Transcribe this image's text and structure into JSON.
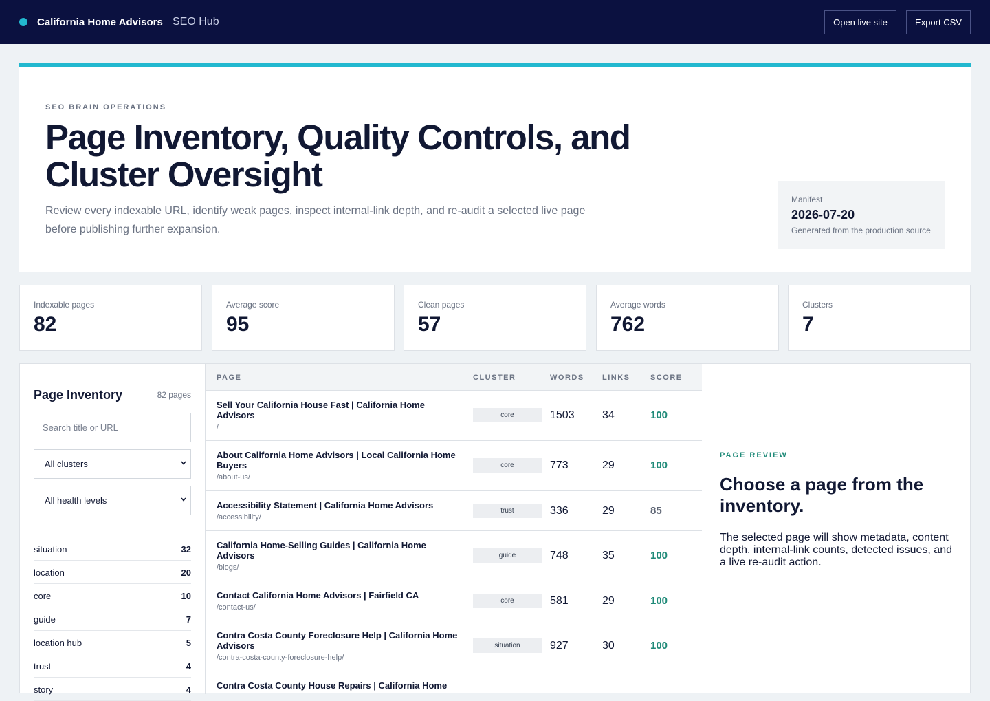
{
  "header": {
    "brand_name": "California Home Advisors",
    "brand_sub": "SEO Hub",
    "open_live_label": "Open live site",
    "export_label": "Export CSV",
    "accent_color": "#22b8cf"
  },
  "hero": {
    "eyebrow": "SEO BRAIN OPERATIONS",
    "title": "Page Inventory, Quality Controls, and Cluster Oversight",
    "description": "Review every indexable URL, identify weak pages, inspect internal-link depth, and re-audit a selected live page before publishing further expansion.",
    "manifest": {
      "label": "Manifest",
      "date": "2026-07-20",
      "note": "Generated from the production source"
    }
  },
  "stats": [
    {
      "label": "Indexable pages",
      "value": "82"
    },
    {
      "label": "Average score",
      "value": "95"
    },
    {
      "label": "Clean pages",
      "value": "57"
    },
    {
      "label": "Average words",
      "value": "762"
    },
    {
      "label": "Clusters",
      "value": "7"
    }
  ],
  "inventory": {
    "title": "Page Inventory",
    "count": "82 pages",
    "search_placeholder": "Search title or URL",
    "cluster_filter": "All clusters",
    "health_filter": "All health levels",
    "clusters": [
      {
        "name": "situation",
        "count": "32"
      },
      {
        "name": "location",
        "count": "20"
      },
      {
        "name": "core",
        "count": "10"
      },
      {
        "name": "guide",
        "count": "7"
      },
      {
        "name": "location hub",
        "count": "5"
      },
      {
        "name": "trust",
        "count": "4"
      },
      {
        "name": "story",
        "count": "4"
      }
    ]
  },
  "table": {
    "columns": {
      "page": "PAGE",
      "cluster": "CLUSTER",
      "words": "WORDS",
      "links": "LINKS",
      "score": "SCORE"
    },
    "rows": [
      {
        "title": "Sell Your California House Fast | California Home Advisors",
        "url": "/",
        "cluster": "core",
        "words": "1503",
        "links": "34",
        "score": "100"
      },
      {
        "title": "About California Home Advisors | Local California Home Buyers",
        "url": "/about-us/",
        "cluster": "core",
        "words": "773",
        "links": "29",
        "score": "100"
      },
      {
        "title": "Accessibility Statement | California Home Advisors",
        "url": "/accessibility/",
        "cluster": "trust",
        "words": "336",
        "links": "29",
        "score": "85"
      },
      {
        "title": "California Home-Selling Guides | California Home Advisors",
        "url": "/blogs/",
        "cluster": "guide",
        "words": "748",
        "links": "35",
        "score": "100"
      },
      {
        "title": "Contact California Home Advisors | Fairfield CA",
        "url": "/contact-us/",
        "cluster": "core",
        "words": "581",
        "links": "29",
        "score": "100"
      },
      {
        "title": "Contra Costa County Foreclosure Help | California Home Advisors",
        "url": "/contra-costa-county-foreclosure-help/",
        "cluster": "situation",
        "words": "927",
        "links": "30",
        "score": "100"
      },
      {
        "title": "Contra Costa County House Repairs | California Home",
        "url": "",
        "cluster": "",
        "words": "",
        "links": "",
        "score": ""
      }
    ],
    "score_colors": {
      "high": "#1f8a78",
      "medium": "#5f6675"
    }
  },
  "review": {
    "eyebrow": "PAGE REVIEW",
    "title": "Choose a page from the inventory.",
    "description": "The selected page will show metadata, content depth, internal-link counts, detected issues, and a live re-audit action."
  }
}
